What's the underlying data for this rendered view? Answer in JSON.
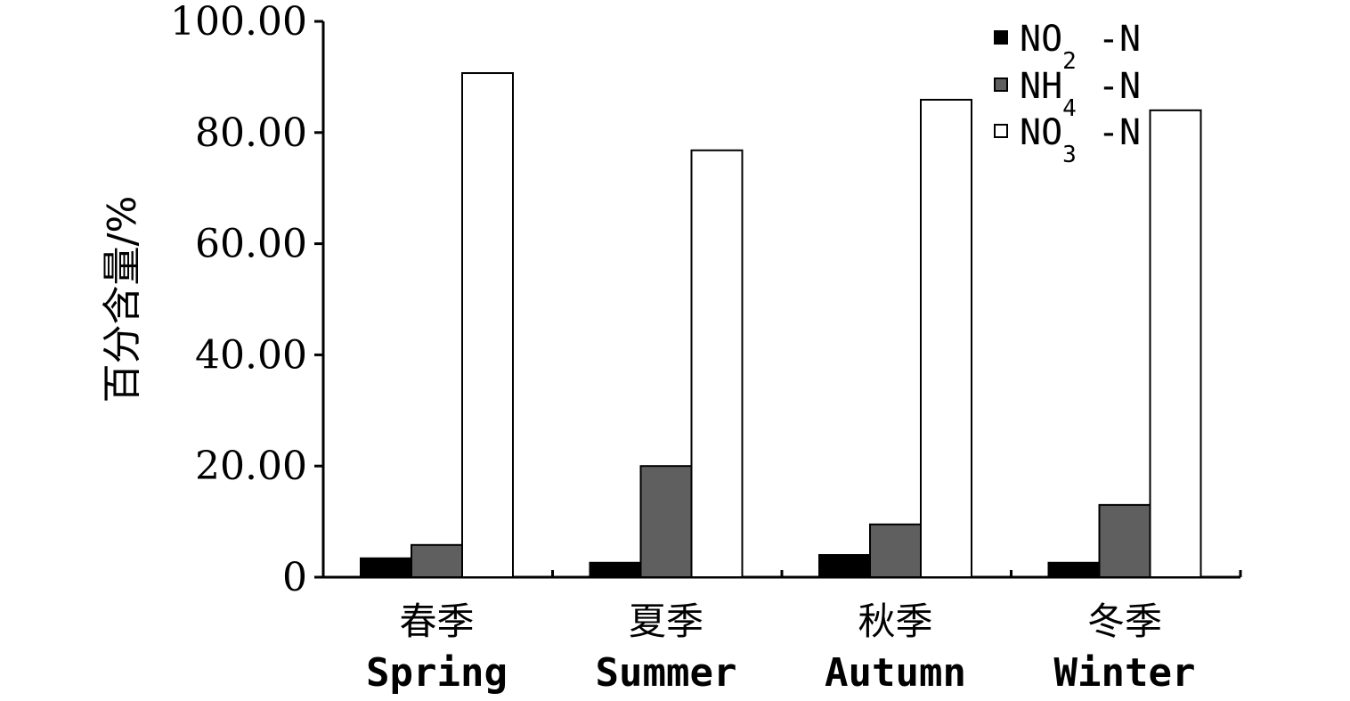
{
  "chart_data": {
    "type": "bar",
    "title": "",
    "xlabel": "",
    "ylabel": "百分含量/%",
    "ylim": [
      0,
      100
    ],
    "yticks": [
      "0",
      "20.00",
      "40.00",
      "60.00",
      "80.00",
      "100.00"
    ],
    "categories": [
      {
        "zh": "春季",
        "en": "Spring"
      },
      {
        "zh": "夏季",
        "en": "Summer"
      },
      {
        "zh": "秋季",
        "en": "Autumn"
      },
      {
        "zh": "冬季",
        "en": "Winter"
      }
    ],
    "series": [
      {
        "name": "NO2 -N",
        "label_main": "NO",
        "label_sub": "2",
        "label_tail": " -N",
        "color": "#000000",
        "values": [
          3.4,
          2.6,
          4.0,
          2.6
        ]
      },
      {
        "name": "NH4 -N",
        "label_main": "NH",
        "label_sub": "4",
        "label_tail": " -N",
        "color": "#5f5f5f",
        "values": [
          5.8,
          20.0,
          9.5,
          13.0
        ]
      },
      {
        "name": "NO3 -N",
        "label_main": "NO",
        "label_sub": "3",
        "label_tail": " -N",
        "color": "#ffffff",
        "values": [
          90.7,
          76.8,
          85.9,
          84.0
        ]
      }
    ],
    "legend_position": "top-right",
    "grid": false
  }
}
